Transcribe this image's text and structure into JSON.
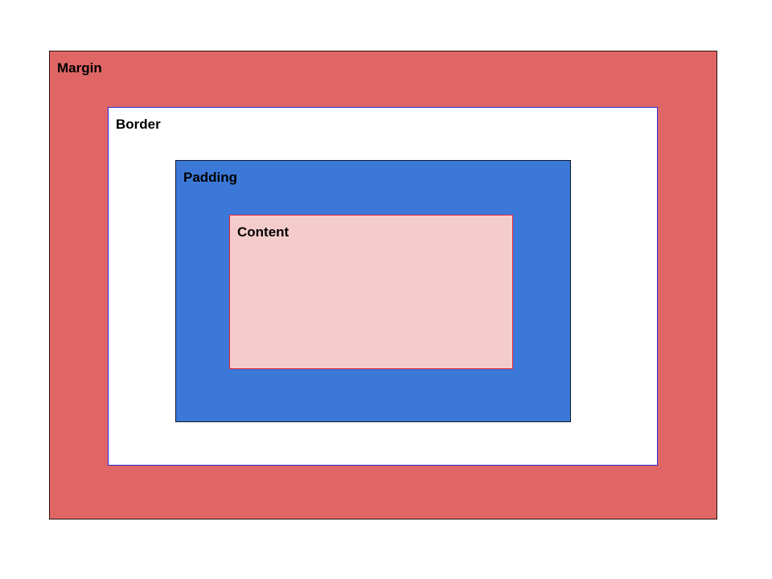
{
  "diagram": {
    "layers": {
      "margin": {
        "label": "Margin",
        "color": "#e06666"
      },
      "border": {
        "label": "Border",
        "color": "#ffffff"
      },
      "padding": {
        "label": "Padding",
        "color": "#3c78d8"
      },
      "content": {
        "label": "Content",
        "color": "#f4cccc"
      }
    }
  }
}
